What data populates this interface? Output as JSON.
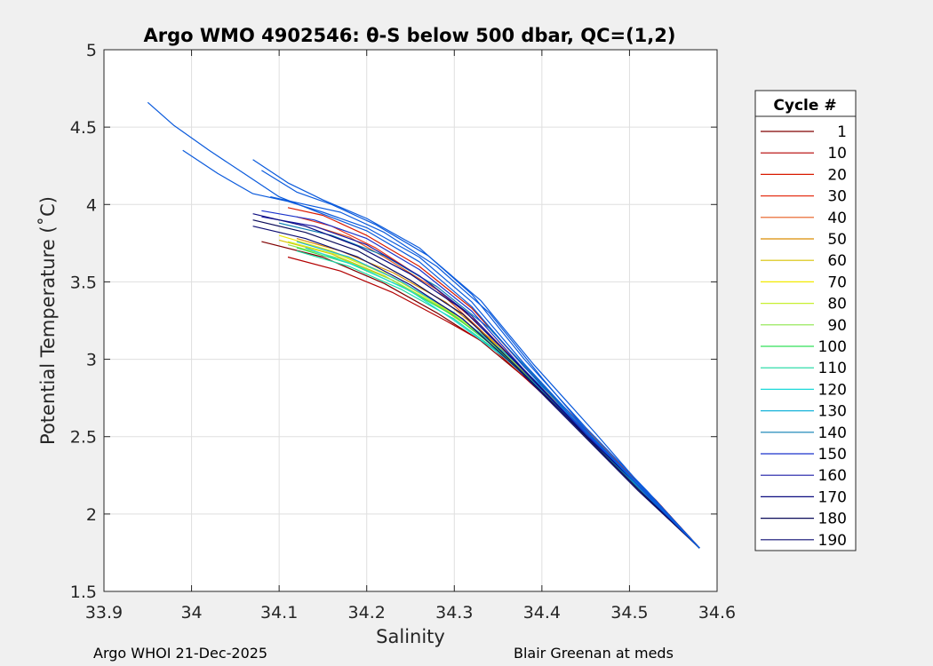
{
  "chart_data": {
    "type": "line",
    "title": "Argo WMO 4902546: θ-S below 500 dbar,  QC=(1,2)",
    "xlabel": "Salinity",
    "ylabel": "Potential Temperature (˚C)",
    "xlim": [
      33.9,
      34.6
    ],
    "ylim": [
      1.5,
      5
    ],
    "xticks": [
      "33.9",
      "34",
      "34.1",
      "34.2",
      "34.3",
      "34.4",
      "34.5",
      "34.6"
    ],
    "yticks": [
      "1.5",
      "2",
      "2.5",
      "3",
      "3.5",
      "4",
      "4.5",
      "5"
    ],
    "grid": true,
    "legend": {
      "title": "Cycle #",
      "location": "outside-right",
      "entries": [
        {
          "label": "1",
          "color": "#800000"
        },
        {
          "label": "10",
          "color": "#b30000"
        },
        {
          "label": "20",
          "color": "#d91a00"
        },
        {
          "label": "30",
          "color": "#e53319"
        },
        {
          "label": "40",
          "color": "#e65c1f"
        },
        {
          "label": "50",
          "color": "#d98c00"
        },
        {
          "label": "60",
          "color": "#d9c200"
        },
        {
          "label": "70",
          "color": "#f2ea00"
        },
        {
          "label": "80",
          "color": "#c8f032"
        },
        {
          "label": "90",
          "color": "#8ce64a"
        },
        {
          "label": "100",
          "color": "#33e05a"
        },
        {
          "label": "110",
          "color": "#1ad9a0"
        },
        {
          "label": "120",
          "color": "#1ad9d9"
        },
        {
          "label": "130",
          "color": "#17b3d9"
        },
        {
          "label": "140",
          "color": "#0b7fb3"
        },
        {
          "label": "150",
          "color": "#1a33cc"
        },
        {
          "label": "160",
          "color": "#1a1aa6"
        },
        {
          "label": "170",
          "color": "#0d0d80"
        },
        {
          "label": "180",
          "color": "#0a0a59"
        },
        {
          "label": "190",
          "color": "#0d0d73"
        }
      ]
    },
    "series": [
      {
        "name": "1",
        "color": "#800000",
        "x": [
          34.08,
          34.15,
          34.22,
          34.28,
          34.33,
          34.4,
          34.47,
          34.53,
          34.58
        ],
        "y": [
          3.76,
          3.66,
          3.49,
          3.3,
          3.12,
          2.79,
          2.42,
          2.09,
          1.78
        ]
      },
      {
        "name": "10",
        "color": "#b30000",
        "x": [
          34.11,
          34.17,
          34.23,
          34.29,
          34.34,
          34.4,
          34.47,
          34.53,
          34.58
        ],
        "y": [
          3.66,
          3.57,
          3.43,
          3.25,
          3.09,
          2.78,
          2.42,
          2.09,
          1.78
        ]
      },
      {
        "name": "20",
        "color": "#d91a00",
        "x": [
          34.11,
          34.15,
          34.2,
          34.26,
          34.32,
          34.38,
          34.45,
          34.52,
          34.58
        ],
        "y": [
          3.98,
          3.93,
          3.8,
          3.6,
          3.33,
          2.95,
          2.55,
          2.14,
          1.78
        ]
      },
      {
        "name": "30",
        "color": "#e53319",
        "x": [
          34.12,
          34.16,
          34.21,
          34.27,
          34.33,
          34.39,
          34.46,
          34.52,
          34.58
        ],
        "y": [
          3.92,
          3.86,
          3.72,
          3.5,
          3.22,
          2.87,
          2.48,
          2.12,
          1.78
        ]
      },
      {
        "name": "40",
        "color": "#e65c1f",
        "x": [
          34.14,
          34.18,
          34.22,
          34.28,
          34.33,
          34.39,
          34.46,
          34.52,
          34.58
        ],
        "y": [
          3.86,
          3.79,
          3.66,
          3.45,
          3.19,
          2.85,
          2.47,
          2.11,
          1.78
        ]
      },
      {
        "name": "50",
        "color": "#d98c00",
        "x": [
          34.12,
          34.17,
          34.23,
          34.29,
          34.34,
          34.4,
          34.46,
          34.52,
          34.58
        ],
        "y": [
          3.78,
          3.7,
          3.56,
          3.37,
          3.14,
          2.81,
          2.45,
          2.1,
          1.78
        ]
      },
      {
        "name": "60",
        "color": "#d9c200",
        "x": [
          34.1,
          34.16,
          34.22,
          34.28,
          34.34,
          34.4,
          34.46,
          34.52,
          34.58
        ],
        "y": [
          3.77,
          3.68,
          3.54,
          3.35,
          3.12,
          2.8,
          2.44,
          2.1,
          1.78
        ]
      },
      {
        "name": "70",
        "color": "#f2ea00",
        "x": [
          34.1,
          34.16,
          34.22,
          34.28,
          34.34,
          34.4,
          34.46,
          34.52,
          34.58
        ],
        "y": [
          3.8,
          3.7,
          3.56,
          3.36,
          3.13,
          2.8,
          2.44,
          2.1,
          1.78
        ]
      },
      {
        "name": "80",
        "color": "#c8f032",
        "x": [
          34.11,
          34.17,
          34.23,
          34.29,
          34.35,
          34.41,
          34.47,
          34.53,
          34.58
        ],
        "y": [
          3.76,
          3.67,
          3.53,
          3.33,
          3.08,
          2.76,
          2.4,
          2.07,
          1.78
        ]
      },
      {
        "name": "90",
        "color": "#8ce64a",
        "x": [
          34.11,
          34.17,
          34.23,
          34.29,
          34.35,
          34.41,
          34.47,
          34.53,
          34.58
        ],
        "y": [
          3.74,
          3.65,
          3.51,
          3.32,
          3.07,
          2.75,
          2.4,
          2.07,
          1.78
        ]
      },
      {
        "name": "100",
        "color": "#33e05a",
        "x": [
          34.12,
          34.18,
          34.24,
          34.3,
          34.35,
          34.41,
          34.47,
          34.53,
          34.58
        ],
        "y": [
          3.72,
          3.62,
          3.47,
          3.28,
          3.06,
          2.75,
          2.4,
          2.07,
          1.78
        ]
      },
      {
        "name": "110",
        "color": "#1ad9a0",
        "x": [
          34.12,
          34.18,
          34.24,
          34.3,
          34.35,
          34.41,
          34.47,
          34.53,
          34.58
        ],
        "y": [
          3.7,
          3.6,
          3.45,
          3.26,
          3.05,
          2.74,
          2.39,
          2.07,
          1.78
        ]
      },
      {
        "name": "120",
        "color": "#1ad9d9",
        "x": [
          34.13,
          34.19,
          34.25,
          34.3,
          34.36,
          34.42,
          34.48,
          34.53,
          34.58
        ],
        "y": [
          3.72,
          3.6,
          3.44,
          3.25,
          3.0,
          2.7,
          2.36,
          2.06,
          1.78
        ]
      },
      {
        "name": "130",
        "color": "#17b3d9",
        "x": [
          34.12,
          34.18,
          34.24,
          34.3,
          34.36,
          34.42,
          34.48,
          34.53,
          34.58
        ],
        "y": [
          3.76,
          3.66,
          3.5,
          3.3,
          3.03,
          2.72,
          2.37,
          2.06,
          1.78
        ]
      },
      {
        "name": "140",
        "color": "#0b7fb3",
        "x": [
          34.1,
          34.16,
          34.22,
          34.28,
          34.34,
          34.4,
          34.46,
          34.52,
          34.58
        ],
        "y": [
          3.88,
          3.8,
          3.67,
          3.47,
          3.2,
          2.84,
          2.46,
          2.11,
          1.78
        ]
      },
      {
        "name": "150",
        "color": "#1a33cc",
        "x": [
          34.08,
          34.14,
          34.2,
          34.26,
          34.32,
          34.38,
          34.45,
          34.52,
          34.58
        ],
        "y": [
          3.96,
          3.9,
          3.78,
          3.58,
          3.31,
          2.93,
          2.52,
          2.13,
          1.78
        ]
      },
      {
        "name": "160",
        "color": "#1a1aa6",
        "x": [
          34.08,
          34.14,
          34.2,
          34.26,
          34.32,
          34.38,
          34.45,
          34.52,
          34.58
        ],
        "y": [
          3.92,
          3.86,
          3.74,
          3.54,
          3.28,
          2.92,
          2.51,
          2.13,
          1.78
        ]
      },
      {
        "name": "170",
        "color": "#0d0d80",
        "x": [
          34.07,
          34.13,
          34.19,
          34.25,
          34.31,
          34.38,
          34.45,
          34.52,
          34.58
        ],
        "y": [
          3.94,
          3.86,
          3.73,
          3.55,
          3.32,
          2.93,
          2.51,
          2.13,
          1.78
        ]
      },
      {
        "name": "180",
        "color": "#0a0a59",
        "x": [
          34.07,
          34.13,
          34.19,
          34.25,
          34.31,
          34.37,
          34.44,
          34.51,
          34.58
        ],
        "y": [
          3.9,
          3.82,
          3.7,
          3.51,
          3.29,
          2.96,
          2.56,
          2.16,
          1.78
        ]
      },
      {
        "name": "190",
        "color": "#0d0d73",
        "x": [
          34.07,
          34.13,
          34.19,
          34.25,
          34.31,
          34.37,
          34.44,
          34.51,
          34.58
        ],
        "y": [
          3.86,
          3.78,
          3.66,
          3.48,
          3.26,
          2.95,
          2.55,
          2.15,
          1.78
        ]
      },
      {
        "name": "",
        "color": "#0a5adc",
        "x": [
          33.95,
          33.98,
          34.02,
          34.06,
          34.1,
          34.14,
          34.2,
          34.26,
          34.32,
          34.38,
          34.45,
          34.52,
          34.58
        ],
        "y": [
          4.66,
          4.51,
          4.35,
          4.2,
          4.05,
          3.96,
          3.83,
          3.63,
          3.34,
          2.95,
          2.53,
          2.13,
          1.78
        ]
      },
      {
        "name": "",
        "color": "#0a5adc",
        "x": [
          33.99,
          34.03,
          34.07,
          34.11,
          34.15,
          34.2,
          34.26,
          34.32,
          34.38,
          34.45,
          34.52,
          34.58
        ],
        "y": [
          4.35,
          4.2,
          4.07,
          4.02,
          3.95,
          3.85,
          3.66,
          3.37,
          2.97,
          2.54,
          2.14,
          1.78
        ]
      },
      {
        "name": "",
        "color": "#0a5adc",
        "x": [
          34.07,
          34.11,
          34.15,
          34.2,
          34.26,
          34.32,
          34.38,
          34.45,
          34.52,
          34.58
        ],
        "y": [
          4.29,
          4.14,
          4.03,
          3.91,
          3.72,
          3.42,
          3.0,
          2.56,
          2.15,
          1.78
        ]
      },
      {
        "name": "",
        "color": "#0a5adc",
        "x": [
          34.08,
          34.12,
          34.16,
          34.21,
          34.27,
          34.33,
          34.39,
          34.46,
          34.52,
          34.58
        ],
        "y": [
          4.22,
          4.08,
          4.0,
          3.87,
          3.67,
          3.38,
          2.97,
          2.53,
          2.14,
          1.78
        ]
      },
      {
        "name": "",
        "color": "#0a5adc",
        "x": [
          34.09,
          34.13,
          34.17,
          34.22,
          34.28,
          34.34,
          34.4,
          34.46,
          34.52,
          34.58
        ],
        "y": [
          4.05,
          4.0,
          3.95,
          3.82,
          3.6,
          3.3,
          2.88,
          2.48,
          2.12,
          1.78
        ]
      }
    ]
  },
  "footer": {
    "left": "Argo WHOI 21-Dec-2025",
    "right": "Blair Greenan at meds"
  }
}
